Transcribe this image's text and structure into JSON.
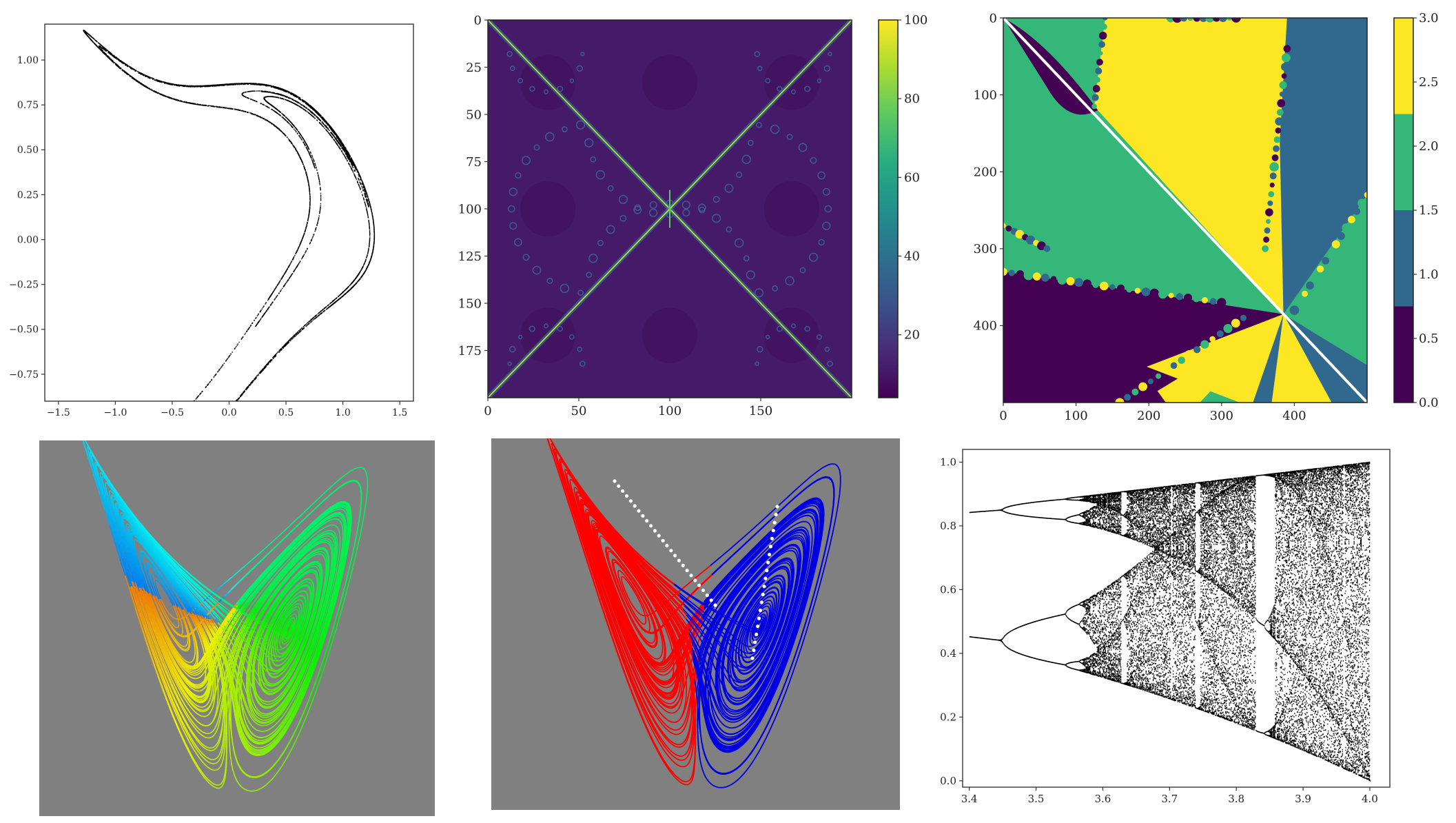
{
  "chart_data": [
    {
      "id": "henon-attractor",
      "type": "scatter",
      "title": "",
      "xlabel": "",
      "ylabel": "",
      "x_ticks": [
        "−1.5",
        "−1.0",
        "−0.5",
        "0.0",
        "0.5",
        "1.0",
        "1.5"
      ],
      "y_ticks": [
        "1.00",
        "0.75",
        "0.50",
        "0.25",
        "0.00",
        "−0.25",
        "−0.50",
        "−0.75"
      ],
      "xlim": [
        -1.62,
        1.62
      ],
      "ylim": [
        -0.9,
        1.2
      ],
      "point_color": "#000000",
      "grid": false
    },
    {
      "id": "fractal-heatmap",
      "type": "heatmap",
      "title": "",
      "x_ticks": [
        "0",
        "50",
        "100",
        "150"
      ],
      "y_ticks": [
        "0",
        "25",
        "50",
        "75",
        "100",
        "125",
        "150",
        "175"
      ],
      "xlim": [
        0,
        200
      ],
      "ylim": [
        0,
        200
      ],
      "colorbar_ticks": [
        "100",
        "80",
        "60",
        "40",
        "20"
      ],
      "colorbar_range": [
        4,
        100
      ],
      "colormap": "viridis"
    },
    {
      "id": "basins-heatmap",
      "type": "heatmap",
      "title": "",
      "x_ticks": [
        "0",
        "100",
        "200",
        "300",
        "400"
      ],
      "y_ticks": [
        "0",
        "100",
        "200",
        "300",
        "400"
      ],
      "xlim": [
        0,
        500
      ],
      "ylim": [
        0,
        500
      ],
      "colorbar_ticks": [
        "3.0",
        "2.5",
        "2.0",
        "1.5",
        "1.0",
        "0.5",
        "0.0"
      ],
      "colorbar_range": [
        0,
        3
      ],
      "colors": [
        "#440154",
        "#31688e",
        "#35b779",
        "#fde725"
      ]
    },
    {
      "id": "lorenz-gradient",
      "type": "line",
      "title": "",
      "background": "#808080",
      "coloring": "rainbow-by-angle"
    },
    {
      "id": "lorenz-partition",
      "type": "line",
      "title": "",
      "background": "#808080",
      "series_colors": [
        "#ff0000",
        "#0000e0",
        "#ffffff"
      ]
    },
    {
      "id": "logistic-bifurcation",
      "type": "scatter",
      "title": "",
      "xlabel": "",
      "ylabel": "",
      "x_ticks": [
        "3.4",
        "3.5",
        "3.6",
        "3.7",
        "3.8",
        "3.9",
        "4.0"
      ],
      "y_ticks": [
        "1.0",
        "0.8",
        "0.6",
        "0.4",
        "0.2",
        "0.0"
      ],
      "xlim": [
        3.39,
        4.03
      ],
      "ylim": [
        -0.02,
        1.04
      ],
      "point_color": "#000000",
      "grid": false
    }
  ]
}
